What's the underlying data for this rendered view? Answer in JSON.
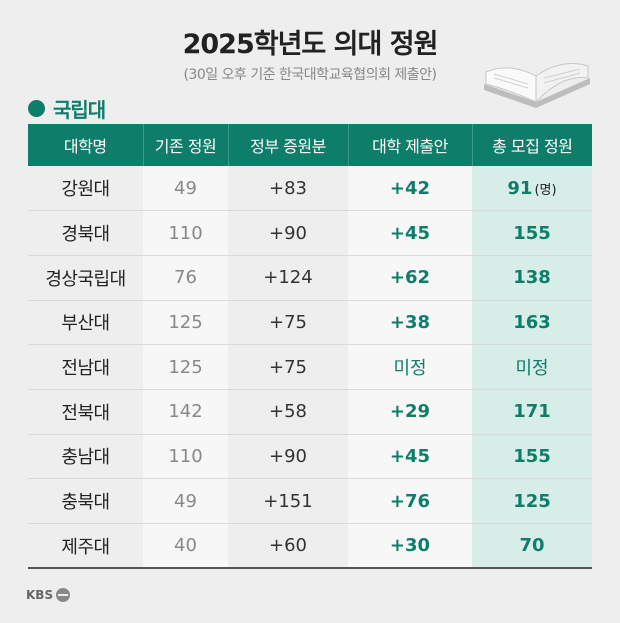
{
  "header": {
    "title": "2025학년도 의대 정원",
    "subtitle": "(30일 오후 기준 한국대학교육협의회 제출안)"
  },
  "section": {
    "label": "국립대"
  },
  "table": {
    "columns": [
      "대학명",
      "기존 정원",
      "정부 증원분",
      "대학 제출안",
      "총 모집 정원"
    ],
    "unit": "(명)",
    "rows": [
      {
        "name": "강원대",
        "base": "49",
        "gov": "+83",
        "submitted": "+42",
        "total": "91"
      },
      {
        "name": "경북대",
        "base": "110",
        "gov": "+90",
        "submitted": "+45",
        "total": "155"
      },
      {
        "name": "경상국립대",
        "base": "76",
        "gov": "+124",
        "submitted": "+62",
        "total": "138"
      },
      {
        "name": "부산대",
        "base": "125",
        "gov": "+75",
        "submitted": "+38",
        "total": "163"
      },
      {
        "name": "전남대",
        "base": "125",
        "gov": "+75",
        "submitted": "미정",
        "total": "미정"
      },
      {
        "name": "전북대",
        "base": "142",
        "gov": "+58",
        "submitted": "+29",
        "total": "171"
      },
      {
        "name": "충남대",
        "base": "110",
        "gov": "+90",
        "submitted": "+45",
        "total": "155"
      },
      {
        "name": "충북대",
        "base": "49",
        "gov": "+151",
        "submitted": "+76",
        "total": "125"
      },
      {
        "name": "제주대",
        "base": "40",
        "gov": "+60",
        "submitted": "+30",
        "total": "70"
      }
    ]
  },
  "footer": {
    "logo_text": "KBS"
  },
  "colors": {
    "accent": "#0e7d6a",
    "highlight": "#d6ede8",
    "background": "#eeeeee"
  },
  "icons": {
    "illustration": "open-book-icon",
    "section_marker": "bullet-dot-icon"
  }
}
